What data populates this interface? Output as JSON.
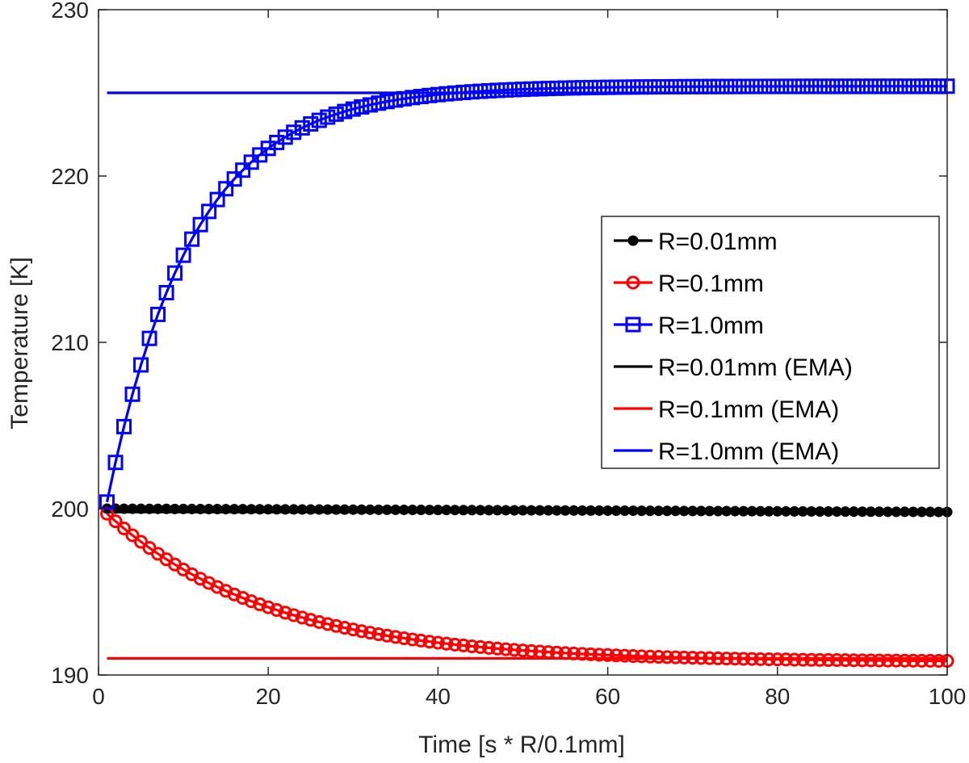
{
  "chart_data": {
    "type": "line",
    "title": "",
    "xlabel": "Time [s * R/0.1mm]",
    "ylabel": "Temperature [K]",
    "xlim": [
      0,
      100
    ],
    "ylim": [
      190,
      230
    ],
    "xticks": [
      0,
      20,
      40,
      60,
      80,
      100
    ],
    "yticks": [
      190,
      200,
      210,
      220,
      230
    ],
    "grid": false,
    "legend": "right-center",
    "series": [
      {
        "name": "R=0.01mm",
        "marker": "dot",
        "color": "#000000",
        "x_start": 1,
        "x_end": 100,
        "x_step": 1,
        "model": {
          "kind": "linear",
          "start": 200.0,
          "end": 199.8
        }
      },
      {
        "name": "R=0.1mm",
        "marker": "circle",
        "color": "#ff0000",
        "x_start": 1,
        "x_end": 100,
        "x_step": 1,
        "model": {
          "kind": "exp",
          "asymptote": 190.8,
          "amplitude": 8.9,
          "tau": 19
        }
      },
      {
        "name": "R=1.0mm",
        "marker": "square",
        "color": "#0000ff",
        "x_start": 1,
        "x_end": 100,
        "x_step": 1,
        "model": {
          "kind": "exp",
          "asymptote": 225.4,
          "amplitude": 25.0,
          "tau": 10
        }
      },
      {
        "name": "R=0.01mm (EMA)",
        "marker": "none",
        "color": "#000000",
        "x": [
          1,
          100
        ],
        "y": [
          199.8,
          199.8
        ]
      },
      {
        "name": "R=0.1mm (EMA)",
        "marker": "none",
        "color": "#ff0000",
        "x": [
          1,
          100
        ],
        "y": [
          191.0,
          191.0
        ]
      },
      {
        "name": "R=1.0mm (EMA)",
        "marker": "none",
        "color": "#0000ff",
        "x": [
          1,
          100
        ],
        "y": [
          225.0,
          225.0
        ]
      }
    ]
  }
}
